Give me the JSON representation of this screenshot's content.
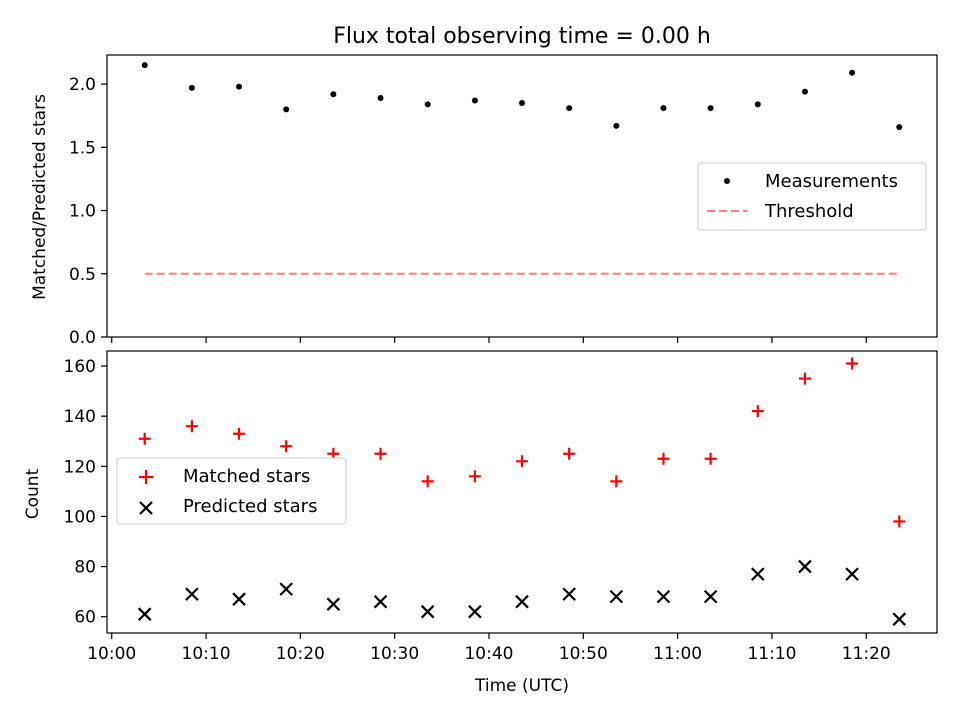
{
  "chart_data": [
    {
      "type": "scatter",
      "title": "Flux total observing time = 0.00 h",
      "xlabel": "",
      "ylabel": "Matched/Predicted stars",
      "ylim": [
        0,
        2.23
      ],
      "yticks": [
        "0.0",
        "0.5",
        "1.0",
        "1.5",
        "2.0"
      ],
      "x": [
        "10:03:30",
        "10:08:30",
        "10:13:30",
        "10:18:30",
        "10:23:30",
        "10:28:30",
        "10:33:30",
        "10:38:30",
        "10:43:30",
        "10:48:30",
        "10:53:30",
        "10:58:30",
        "11:03:30",
        "11:08:30",
        "11:13:30",
        "11:18:30",
        "11:23:30"
      ],
      "series": [
        {
          "name": "Measurements",
          "marker": "dot",
          "color": "#000000",
          "values": [
            2.15,
            1.97,
            1.98,
            1.8,
            1.92,
            1.89,
            1.84,
            1.87,
            1.85,
            1.81,
            1.67,
            1.81,
            1.81,
            1.84,
            1.94,
            2.09,
            1.66
          ]
        },
        {
          "name": "Threshold",
          "marker": "dashed-line",
          "color": "#ff7f7f",
          "values": [
            0.5,
            0.5
          ]
        }
      ],
      "threshold_x": [
        "10:03:30",
        "11:23:30"
      ],
      "legend": "center-right",
      "grid": false
    },
    {
      "type": "scatter",
      "title": "",
      "xlabel": "Time (UTC)",
      "ylabel": "Count",
      "xlim": [
        "09:59:30",
        "11:27:30"
      ],
      "xticks": [
        "10:00",
        "10:10",
        "10:20",
        "10:30",
        "10:40",
        "10:50",
        "11:00",
        "11:10",
        "11:20"
      ],
      "ylim": [
        53.5,
        166
      ],
      "yticks": [
        "60",
        "80",
        "100",
        "120",
        "140",
        "160"
      ],
      "x": [
        "10:03:30",
        "10:08:30",
        "10:13:30",
        "10:18:30",
        "10:23:30",
        "10:28:30",
        "10:33:30",
        "10:38:30",
        "10:43:30",
        "10:48:30",
        "10:53:30",
        "10:58:30",
        "11:03:30",
        "11:08:30",
        "11:13:30",
        "11:18:30",
        "11:23:30"
      ],
      "series": [
        {
          "name": "Matched stars",
          "marker": "plus",
          "color": "#ff0000",
          "values": [
            131,
            136,
            133,
            128,
            125,
            125,
            114,
            116,
            122,
            125,
            114,
            123,
            123,
            142,
            155,
            161,
            98
          ]
        },
        {
          "name": "Predicted stars",
          "marker": "x",
          "color": "#000000",
          "values": [
            61,
            69,
            67,
            71,
            65,
            66,
            62,
            62,
            66,
            69,
            68,
            68,
            68,
            77,
            80,
            77,
            59
          ]
        }
      ],
      "legend": "center-left",
      "grid": false
    }
  ]
}
